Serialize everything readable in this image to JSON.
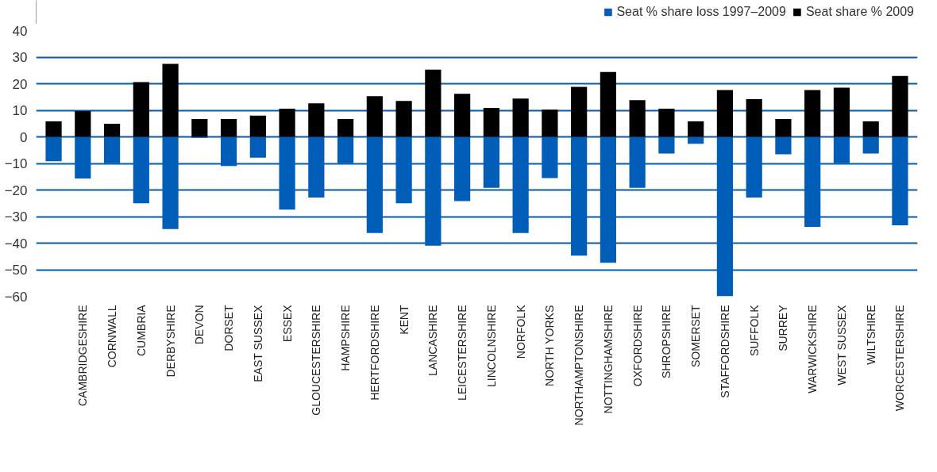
{
  "chart_data": {
    "type": "bar",
    "stacked": true,
    "categories": [
      null,
      "CAMBRIDGESHIRE",
      "CORNWALL",
      "CUMBRIA",
      "DERBYSHIRE",
      "DEVON",
      "DORSET",
      "EAST SUSSEX",
      "ESSEX",
      "GLOUCESTERSHIRE",
      "HAMPSHIRE",
      "HERTFORDSHIRE",
      "KENT",
      "LANCASHIRE",
      "LEICESTERSHIRE",
      "LINCOLNSHIRE",
      "NORFOLK",
      "NORTH YORKS",
      "NORTHAMPTONSHIRE",
      "NOTTINGHAMSHIRE",
      "OXFORDSHIRE",
      "SHROPSHIRE",
      "SOMERSET",
      "STAFFORDSHIRE",
      "SUFFOLK",
      "SURREY",
      "WARWICKSHIRE",
      "WEST SUSSEX",
      "WILTSHIRE",
      "WORCESTERSHIRE"
    ],
    "series": [
      {
        "name": "Seat % share loss 1997–2009",
        "color": "#005eb8",
        "values": [
          -9.2,
          -15.7,
          -9.9,
          -25,
          -34.7,
          -0.4,
          -11,
          -7.8,
          -27.4,
          -22.8,
          -9.9,
          -36.2,
          -25,
          -41,
          -24.2,
          -19.2,
          -36.2,
          -15.5,
          -44.7,
          -47.4,
          -19.2,
          -6.3,
          -2.6,
          -60,
          -22.8,
          -6.6,
          -33.9,
          -9.9,
          -6.3,
          -33.3
        ]
      },
      {
        "name": "Seat share % 2009",
        "color": "#000000",
        "values": [
          5.8,
          9.7,
          4.9,
          20.6,
          27.5,
          6.7,
          6.7,
          8,
          10.6,
          12.6,
          6.7,
          15.3,
          13.5,
          25.3,
          16.2,
          10.9,
          14.4,
          10.2,
          18.8,
          24.4,
          13.8,
          10.6,
          5.8,
          17.6,
          14.2,
          6.7,
          17.6,
          18.5,
          5.8,
          22.9
        ]
      }
    ],
    "ylim": [
      -60,
      40
    ],
    "yticks": [
      -60,
      -50,
      -40,
      -30,
      -20,
      -10,
      0,
      10,
      20,
      30,
      40
    ],
    "grid": "y",
    "legend": "top right"
  }
}
